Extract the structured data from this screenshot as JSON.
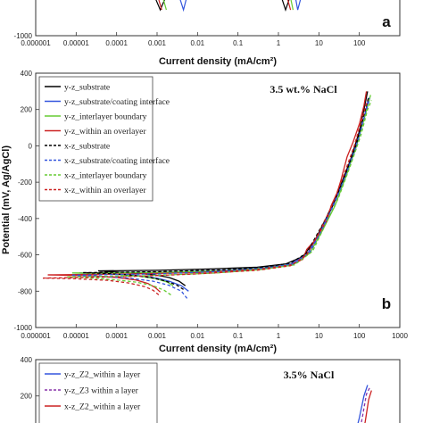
{
  "chart_data": [
    {
      "panel": "a",
      "type": "line",
      "x_scale": "log",
      "xlim": [
        1e-06,
        1000
      ],
      "ylim": [
        -1000,
        400
      ],
      "x_ticks": [
        "0.000001",
        "0.00001",
        "0.0001",
        "0.001",
        "0.01",
        "0.1",
        "1",
        "10",
        "100"
      ],
      "y_ticks_visible": [
        "-1000"
      ],
      "xlabel": "Current density (mA/cm²)",
      "ylabel": "",
      "annotation": "",
      "panel_label": "a",
      "legend": [],
      "series_fragments": [
        {
          "color": "#000000",
          "dash": false,
          "points": [
            [
              0.0009,
              -780
            ],
            [
              0.0012,
              -850
            ],
            [
              0.0016,
              -780
            ]
          ]
        },
        {
          "color": "#3355dd",
          "dash": false,
          "points": [
            [
              0.0035,
              -770
            ],
            [
              0.0045,
              -850
            ],
            [
              0.0055,
              -770
            ]
          ]
        },
        {
          "color": "#66cc33",
          "dash": false,
          "points": [
            [
              0.0014,
              -780
            ],
            [
              0.0017,
              -850
            ]
          ]
        },
        {
          "color": "#cc2222",
          "dash": false,
          "points": [
            [
              0.0011,
              -790
            ],
            [
              0.0013,
              -850
            ]
          ]
        },
        {
          "color": "#000000",
          "dash": false,
          "points": [
            [
              1.2,
              -780
            ],
            [
              1.5,
              -850
            ],
            [
              1.9,
              -780
            ]
          ]
        },
        {
          "color": "#3355dd",
          "dash": false,
          "points": [
            [
              2.6,
              -770
            ],
            [
              3.0,
              -850
            ],
            [
              3.6,
              -780
            ]
          ]
        },
        {
          "color": "#66cc33",
          "dash": false,
          "points": [
            [
              2.0,
              -780
            ],
            [
              2.3,
              -850
            ]
          ]
        },
        {
          "color": "#cc2222",
          "dash": false,
          "points": [
            [
              1.7,
              -790
            ],
            [
              2.0,
              -850
            ]
          ]
        }
      ]
    },
    {
      "panel": "b",
      "type": "line",
      "x_scale": "log",
      "xlim": [
        1e-06,
        1000
      ],
      "ylim": [
        -1000,
        400
      ],
      "x_ticks": [
        "0.000001",
        "0.00001",
        "0.0001",
        "0.001",
        "0.01",
        "0.1",
        "1",
        "10",
        "100",
        "1000"
      ],
      "y_ticks": [
        "400",
        "200",
        "0",
        "-200",
        "-400",
        "-600",
        "-800",
        "-1000"
      ],
      "xlabel": "Current density (mA/cm²)",
      "ylabel": "Potential (mV, Ag/AgCl)",
      "annotation": "3.5 wt.% NaCl",
      "panel_label": "b",
      "legend_position": "top-left",
      "series": [
        {
          "name": "y-z_substrate",
          "color": "#000000",
          "dash": false,
          "cathodic": [
            [
              0.005,
              -770
            ],
            [
              0.0035,
              -745
            ],
            [
              0.002,
              -725
            ],
            [
              0.001,
              -712
            ],
            [
              0.0003,
              -700
            ],
            [
              0.0001,
              -695
            ],
            [
              3.5e-05,
              -688
            ]
          ],
          "anodic": [
            [
              3.5e-05,
              -688
            ],
            [
              0.001,
              -685
            ],
            [
              0.02,
              -678
            ],
            [
              0.3,
              -668
            ],
            [
              1.5,
              -650
            ],
            [
              4,
              -610
            ],
            [
              8,
              -520
            ],
            [
              15,
              -400
            ],
            [
              30,
              -250
            ],
            [
              60,
              -80
            ],
            [
              100,
              80
            ],
            [
              130,
              200
            ],
            [
              160,
              300
            ]
          ]
        },
        {
          "name": "y-z_substrate/coating interface",
          "color": "#3355dd",
          "dash": false,
          "cathodic": [
            [
              0.006,
              -800
            ],
            [
              0.004,
              -770
            ],
            [
              0.002,
              -745
            ],
            [
              0.001,
              -728
            ],
            [
              0.0003,
              -712
            ],
            [
              5e-05,
              -705
            ],
            [
              1.2e-05,
              -700
            ]
          ],
          "anodic": [
            [
              1.2e-05,
              -700
            ],
            [
              0.001,
              -696
            ],
            [
              0.05,
              -685
            ],
            [
              0.5,
              -670
            ],
            [
              2,
              -650
            ],
            [
              5,
              -600
            ],
            [
              10,
              -490
            ],
            [
              20,
              -350
            ],
            [
              40,
              -200
            ],
            [
              80,
              -20
            ],
            [
              130,
              150
            ],
            [
              170,
              265
            ]
          ]
        },
        {
          "name": "y-z_interlayer boundary",
          "color": "#66cc33",
          "dash": false,
          "cathodic": [
            [
              0.0025,
              -770
            ],
            [
              0.0018,
              -750
            ],
            [
              0.001,
              -733
            ],
            [
              0.0004,
              -718
            ],
            [
              0.0001,
              -708
            ],
            [
              2e-05,
              -702
            ],
            [
              8e-06,
              -700
            ]
          ],
          "anodic": [
            [
              8e-06,
              -700
            ],
            [
              0.001,
              -697
            ],
            [
              0.05,
              -688
            ],
            [
              0.5,
              -672
            ],
            [
              2.5,
              -650
            ],
            [
              6,
              -590
            ],
            [
              12,
              -470
            ],
            [
              25,
              -330
            ],
            [
              50,
              -150
            ],
            [
              90,
              20
            ],
            [
              140,
              170
            ],
            [
              190,
              280
            ]
          ]
        },
        {
          "name": "y-z_within an overlayer",
          "color": "#cc2222",
          "dash": false,
          "cathodic": [
            [
              0.0012,
              -805
            ],
            [
              0.0009,
              -780
            ],
            [
              0.0006,
              -758
            ],
            [
              0.0003,
              -738
            ],
            [
              0.0001,
              -725
            ],
            [
              3e-05,
              -716
            ],
            [
              2e-06,
              -710
            ]
          ],
          "anodic": [
            [
              2e-06,
              -710
            ],
            [
              0.0003,
              -705
            ],
            [
              0.01,
              -698
            ],
            [
              0.3,
              -680
            ],
            [
              2,
              -655
            ],
            [
              4,
              -625
            ],
            [
              5,
              -570
            ],
            [
              8,
              -520
            ],
            [
              11,
              -470
            ],
            [
              16,
              -410
            ],
            [
              20,
              -330
            ],
            [
              28,
              -260
            ],
            [
              35,
              -190
            ],
            [
              50,
              -60
            ],
            [
              70,
              20
            ],
            [
              100,
              120
            ],
            [
              130,
              220
            ],
            [
              150,
              300
            ]
          ]
        },
        {
          "name": "x-z_substrate",
          "color": "#000000",
          "dash": true,
          "cathodic": [
            [
              0.0045,
              -790
            ],
            [
              0.003,
              -765
            ],
            [
              0.0015,
              -742
            ],
            [
              0.0007,
              -725
            ],
            [
              0.0002,
              -710
            ],
            [
              6e-05,
              -703
            ],
            [
              1.5e-05,
              -698
            ]
          ],
          "anodic": [
            [
              1.5e-05,
              -698
            ],
            [
              0.001,
              -693
            ],
            [
              0.05,
              -682
            ],
            [
              0.5,
              -667
            ],
            [
              2,
              -645
            ],
            [
              5,
              -590
            ],
            [
              10,
              -470
            ],
            [
              22,
              -330
            ],
            [
              45,
              -160
            ],
            [
              85,
              10
            ],
            [
              130,
              170
            ],
            [
              170,
              270
            ]
          ]
        },
        {
          "name": "x-z_substrate/coating interface",
          "color": "#3355dd",
          "dash": true,
          "cathodic": [
            [
              0.0055,
              -840
            ],
            [
              0.004,
              -800
            ],
            [
              0.002,
              -768
            ],
            [
              0.0008,
              -745
            ],
            [
              0.0002,
              -728
            ],
            [
              4e-05,
              -718
            ],
            [
              8e-06,
              -712
            ]
          ],
          "anodic": [
            [
              8e-06,
              -712
            ],
            [
              0.001,
              -705
            ],
            [
              0.05,
              -690
            ],
            [
              0.5,
              -672
            ],
            [
              2.5,
              -650
            ],
            [
              6,
              -585
            ],
            [
              12,
              -460
            ],
            [
              25,
              -310
            ],
            [
              50,
              -140
            ],
            [
              95,
              40
            ],
            [
              140,
              180
            ],
            [
              180,
              260
            ]
          ]
        },
        {
          "name": "x-z_interlayer boundary",
          "color": "#66cc33",
          "dash": true,
          "cathodic": [
            [
              0.0022,
              -820
            ],
            [
              0.0015,
              -795
            ],
            [
              0.0008,
              -770
            ],
            [
              0.0003,
              -750
            ],
            [
              0.0001,
              -738
            ],
            [
              3e-05,
              -729
            ],
            [
              6e-06,
              -722
            ]
          ],
          "anodic": [
            [
              6e-06,
              -722
            ],
            [
              0.0005,
              -715
            ],
            [
              0.03,
              -700
            ],
            [
              0.4,
              -680
            ],
            [
              2.5,
              -655
            ],
            [
              7,
              -580
            ],
            [
              14,
              -440
            ],
            [
              30,
              -290
            ],
            [
              60,
              -110
            ],
            [
              110,
              60
            ],
            [
              160,
              200
            ],
            [
              200,
              250
            ]
          ]
        },
        {
          "name": "x-z_within an overlayer",
          "color": "#cc2222",
          "dash": true,
          "cathodic": [
            [
              0.0011,
              -820
            ],
            [
              0.0008,
              -795
            ],
            [
              0.0005,
              -775
            ],
            [
              0.0002,
              -755
            ],
            [
              6e-05,
              -740
            ],
            [
              1e-05,
              -732
            ],
            [
              1.5e-06,
              -728
            ]
          ],
          "anodic": [
            [
              1.5e-06,
              -728
            ],
            [
              0.0002,
              -720
            ],
            [
              0.01,
              -705
            ],
            [
              0.3,
              -685
            ],
            [
              2,
              -660
            ],
            [
              5,
              -600
            ],
            [
              10,
              -480
            ],
            [
              20,
              -340
            ],
            [
              40,
              -170
            ],
            [
              75,
              0
            ],
            [
              120,
              160
            ],
            [
              160,
              250
            ]
          ]
        }
      ]
    },
    {
      "panel": "c",
      "type": "line",
      "x_scale": "log",
      "xlim": [
        1e-06,
        1000
      ],
      "ylim": [
        -1000,
        400
      ],
      "y_ticks_visible": [
        "400",
        "200",
        "0"
      ],
      "xlabel": "",
      "ylabel": "",
      "annotation": "3.5% NaCl",
      "legend_position": "top-left",
      "series": [
        {
          "name": "y-z_Z2_within a layer",
          "color": "#3355dd",
          "dash": false,
          "points": [
            [
              70,
              -60
            ],
            [
              100,
              80
            ],
            [
              130,
              200
            ],
            [
              160,
              260
            ]
          ]
        },
        {
          "name": "y-z_Z3  within a layer",
          "color": "#8833aa",
          "dash": true,
          "points": [
            [
              90,
              -60
            ],
            [
              120,
              90
            ],
            [
              150,
              210
            ],
            [
              185,
              250
            ]
          ]
        },
        {
          "name": "x-z_Z2_within a layer",
          "color": "#cc2222",
          "dash": false,
          "points": [
            [
              110,
              -60
            ],
            [
              140,
              60
            ],
            [
              170,
              180
            ],
            [
              200,
              230
            ]
          ]
        }
      ]
    }
  ]
}
